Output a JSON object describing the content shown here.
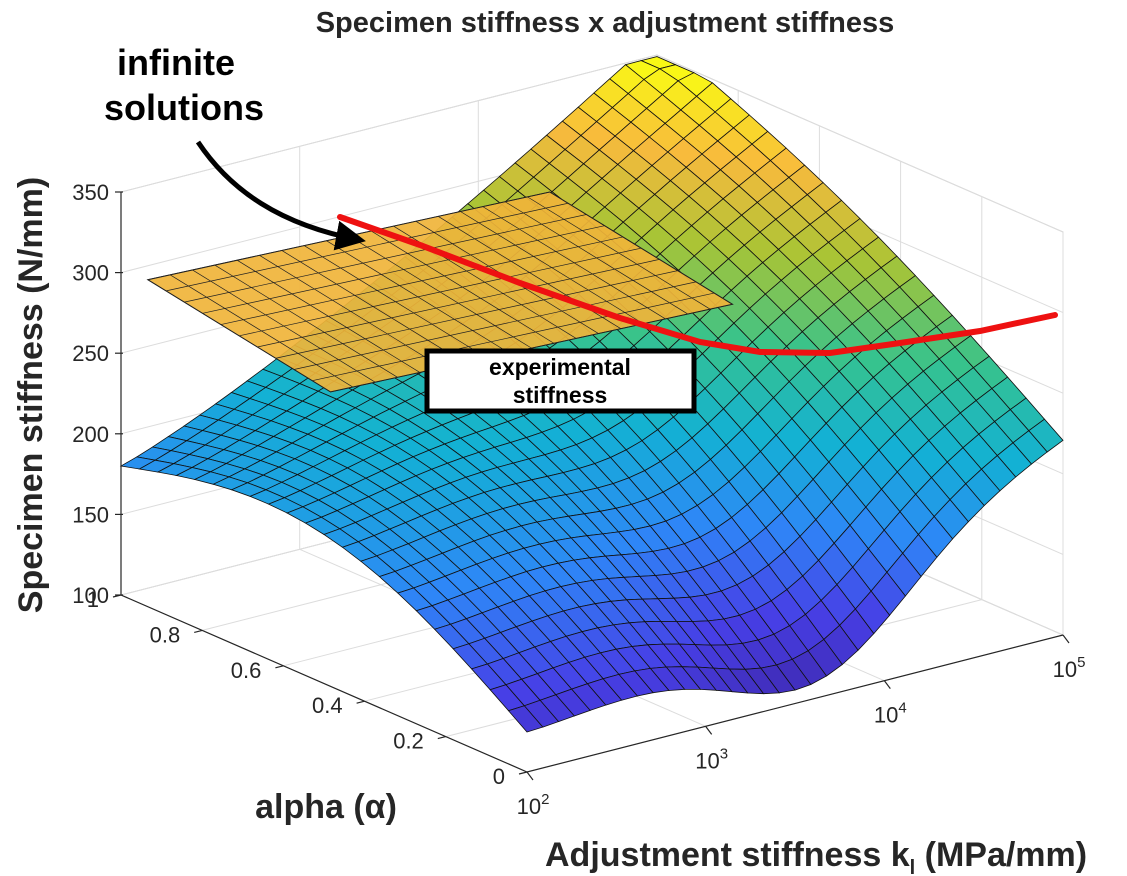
{
  "chart_data": {
    "type": "surface",
    "title": "Specimen stiffness x adjustment stiffness",
    "xlabel": "Adjustment stiffness k",
    "xlabel_sub": "l",
    "xlabel_unit": " (MPa/mm)",
    "ylabel": "alpha (α)",
    "zlabel": "Specimen stiffness (N/mm)",
    "x_scale": "log",
    "xlim": [
      100,
      100000
    ],
    "x_ticks": [
      {
        "base": "10",
        "exp": "2"
      },
      {
        "base": "10",
        "exp": "3"
      },
      {
        "base": "10",
        "exp": "4"
      },
      {
        "base": "10",
        "exp": "5"
      }
    ],
    "x_tick_values": [
      100,
      1000,
      10000,
      100000
    ],
    "ylim": [
      0,
      1
    ],
    "y_ticks": [
      "0",
      "0.2",
      "0.4",
      "0.6",
      "0.8",
      "1"
    ],
    "y_tick_values": [
      0,
      0.2,
      0.4,
      0.6,
      0.8,
      1
    ],
    "zlim": [
      100,
      350
    ],
    "z_ticks": [
      "100",
      "150",
      "200",
      "250",
      "300",
      "350"
    ],
    "z_tick_values": [
      100,
      150,
      200,
      250,
      300,
      350
    ],
    "grid": true,
    "colormap": "parula",
    "surface": {
      "description_values": "stiffness grid over (k, alpha)",
      "corner_values": {
        "k100_alpha0": 125,
        "k100_alpha1": 178,
        "k100000_alpha0": 222,
        "k100000_alpha1": 340
      }
    },
    "experimental_plane_value": 247,
    "solution_curve": {
      "name": "infinite solutions",
      "k": [
        200,
        500,
        1000,
        2000,
        4000,
        8000,
        15000,
        30000,
        60000,
        100000
      ],
      "alpha": [
        0.99,
        0.9,
        0.78,
        0.65,
        0.52,
        0.42,
        0.33,
        0.24,
        0.16,
        0.1
      ]
    },
    "annotations": [
      {
        "text": [
          "infinite",
          "solutions"
        ],
        "arrow": true
      },
      {
        "text": [
          "experimental",
          "stiffness"
        ],
        "boxed": true
      }
    ]
  }
}
